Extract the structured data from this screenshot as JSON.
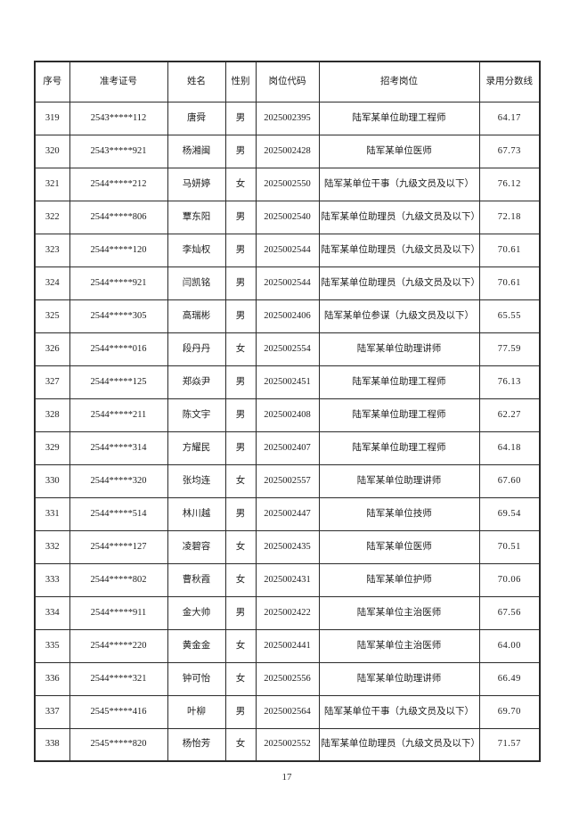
{
  "page": {
    "number": "17"
  },
  "table": {
    "column_keys": [
      "index",
      "exam-id",
      "name",
      "gender",
      "position-code",
      "position",
      "score-line"
    ],
    "headers": [
      "序号",
      "准考证号",
      "姓名",
      "性别",
      "岗位代码",
      "招考岗位",
      "录用分数线"
    ],
    "rows": [
      [
        "319",
        "2543*****112",
        "唐舜",
        "男",
        "2025002395",
        "陆军某单位助理工程师",
        "64.17"
      ],
      [
        "320",
        "2543*****921",
        "杨湘闽",
        "男",
        "2025002428",
        "陆军某单位医师",
        "67.73"
      ],
      [
        "321",
        "2544*****212",
        "马妍婷",
        "女",
        "2025002550",
        "陆军某单位干事（九级文员及以下）",
        "76.12"
      ],
      [
        "322",
        "2544*****806",
        "覃东阳",
        "男",
        "2025002540",
        "陆军某单位助理员（九级文员及以下）",
        "72.18"
      ],
      [
        "323",
        "2544*****120",
        "李灿权",
        "男",
        "2025002544",
        "陆军某单位助理员（九级文员及以下）",
        "70.61"
      ],
      [
        "324",
        "2544*****921",
        "闫凯铭",
        "男",
        "2025002544",
        "陆军某单位助理员（九级文员及以下）",
        "70.61"
      ],
      [
        "325",
        "2544*****305",
        "高瑞彬",
        "男",
        "2025002406",
        "陆军某单位参谋（九级文员及以下）",
        "65.55"
      ],
      [
        "326",
        "2544*****016",
        "段丹丹",
        "女",
        "2025002554",
        "陆军某单位助理讲师",
        "77.59"
      ],
      [
        "327",
        "2544*****125",
        "郑焱尹",
        "男",
        "2025002451",
        "陆军某单位助理工程师",
        "76.13"
      ],
      [
        "328",
        "2544*****211",
        "陈文宇",
        "男",
        "2025002408",
        "陆军某单位助理工程师",
        "62.27"
      ],
      [
        "329",
        "2544*****314",
        "方耀民",
        "男",
        "2025002407",
        "陆军某单位助理工程师",
        "64.18"
      ],
      [
        "330",
        "2544*****320",
        "张均连",
        "女",
        "2025002557",
        "陆军某单位助理讲师",
        "67.60"
      ],
      [
        "331",
        "2544*****514",
        "林川越",
        "男",
        "2025002447",
        "陆军某单位技师",
        "69.54"
      ],
      [
        "332",
        "2544*****127",
        "凌碧容",
        "女",
        "2025002435",
        "陆军某单位医师",
        "70.51"
      ],
      [
        "333",
        "2544*****802",
        "曹秋霞",
        "女",
        "2025002431",
        "陆军某单位护师",
        "70.06"
      ],
      [
        "334",
        "2544*****911",
        "金大帅",
        "男",
        "2025002422",
        "陆军某单位主治医师",
        "67.56"
      ],
      [
        "335",
        "2544*****220",
        "黄金金",
        "女",
        "2025002441",
        "陆军某单位主治医师",
        "64.00"
      ],
      [
        "336",
        "2544*****321",
        "钟可怡",
        "女",
        "2025002556",
        "陆军某单位助理讲师",
        "66.49"
      ],
      [
        "337",
        "2545*****416",
        "叶柳",
        "男",
        "2025002564",
        "陆军某单位干事（九级文员及以下）",
        "69.70"
      ],
      [
        "338",
        "2545*****820",
        "杨怡芳",
        "女",
        "2025002552",
        "陆军某单位助理员（九级文员及以下）",
        "71.57"
      ]
    ]
  }
}
